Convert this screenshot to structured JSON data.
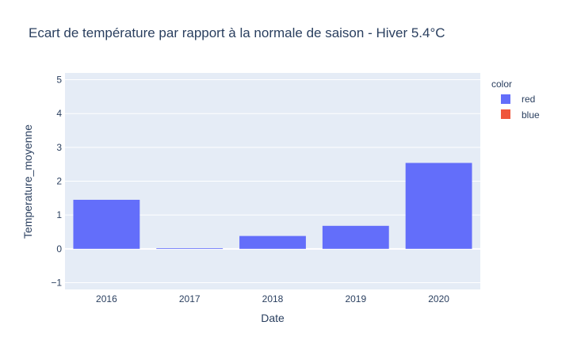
{
  "chart_data": {
    "type": "bar",
    "title": "Ecart de température par rapport à la normale de saison - Hiver 5.4°C",
    "xlabel": "Date",
    "ylabel": "Temperature_moyenne",
    "categories": [
      "2016",
      "2017",
      "2018",
      "2019",
      "2020"
    ],
    "series": [
      {
        "name": "red",
        "color": "#636efa",
        "values": [
          1.45,
          0.02,
          0.38,
          0.68,
          2.54
        ]
      },
      {
        "name": "blue",
        "color": "#ef553b",
        "values": [
          null,
          null,
          null,
          null,
          null
        ]
      }
    ],
    "ylim": [
      -1.2,
      5.2
    ],
    "yticks": [
      "−1",
      "0",
      "1",
      "2",
      "3",
      "4",
      "5"
    ],
    "ytick_values": [
      -1,
      0,
      1,
      2,
      3,
      4,
      5
    ],
    "legend_title": "color",
    "legend_position": "right",
    "grid": true,
    "plot_bgcolor": "#e5ecf6"
  }
}
